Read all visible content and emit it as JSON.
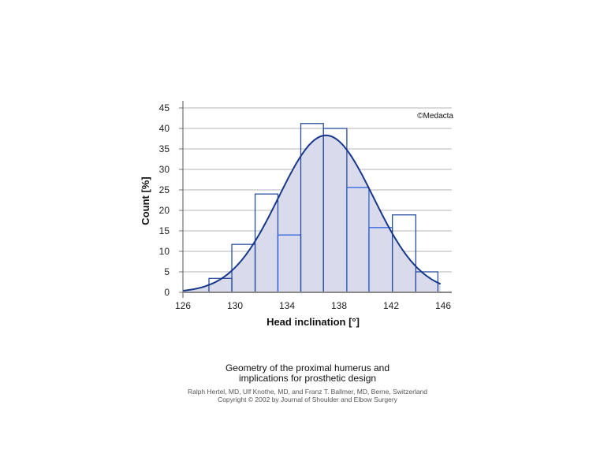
{
  "chart_data": {
    "type": "bar",
    "title": "",
    "xlabel": "Head inclination [°]",
    "ylabel": "Count [%]",
    "xlim": [
      126,
      146
    ],
    "ylim": [
      0,
      45
    ],
    "xticks": [
      126,
      130,
      134,
      138,
      142,
      146
    ],
    "yticks": [
      0,
      5,
      10,
      15,
      20,
      25,
      30,
      35,
      40,
      45
    ],
    "grid": true,
    "watermark": "©Medacta",
    "bin_edges": [
      128.0,
      129.76,
      131.55,
      133.3,
      135.06,
      136.8,
      138.6,
      140.3,
      142.1,
      143.9,
      145.6
    ],
    "values": [
      3.4,
      11.7,
      24.0,
      14.0,
      41.2,
      40.0,
      25.6,
      15.8,
      18.9,
      5.0
    ],
    "fit_curve": {
      "type": "normal",
      "mean": 137.0,
      "sd": 3.64,
      "peak": 38.3
    },
    "colors": {
      "bar_stroke": "#2f62e0",
      "bar_stroke_dark": "#2a4e9e",
      "curve": "#17378a",
      "fill": "#d9dbec",
      "grid": "#b5b5b5"
    }
  },
  "caption": {
    "title_line1": "Geometry of the proximal humerus and",
    "title_line2": "implications for prosthetic design",
    "authors": "Ralph Hertel, MD, Ulf Knothe, MD, and Franz T. Ballmer, MD, Berne, Switzerland",
    "copyright": "Copyright © 2002 by Journal of Shoulder and Elbow Surgery"
  }
}
